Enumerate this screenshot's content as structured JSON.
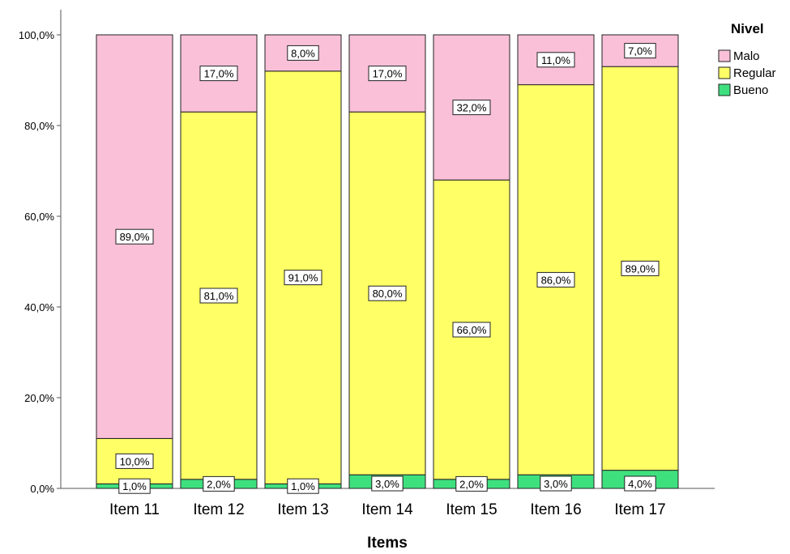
{
  "chart_data": {
    "type": "bar",
    "stacked": true,
    "categories": [
      "Item 11",
      "Item 12",
      "Item 13",
      "Item 14",
      "Item 15",
      "Item 16",
      "Item 17"
    ],
    "series": [
      {
        "name": "Bueno",
        "color": "#3ee07e",
        "values": [
          1.0,
          2.0,
          1.0,
          3.0,
          2.0,
          3.0,
          4.0
        ]
      },
      {
        "name": "Regular",
        "color": "#ffff66",
        "values": [
          10.0,
          81.0,
          91.0,
          80.0,
          66.0,
          86.0,
          89.0
        ]
      },
      {
        "name": "Malo",
        "color": "#f9c0d8",
        "values": [
          89.0,
          17.0,
          8.0,
          17.0,
          32.0,
          11.0,
          7.0
        ]
      }
    ],
    "data_labels": [
      [
        "1,0%",
        "2,0%",
        "1,0%",
        "3,0%",
        "2,0%",
        "3,0%",
        "4,0%"
      ],
      [
        "10,0%",
        "81,0%",
        "91,0%",
        "80,0%",
        "66,0%",
        "86,0%",
        "89,0%"
      ],
      [
        "89,0%",
        "17,0%",
        "8,0%",
        "17,0%",
        "32,0%",
        "11,0%",
        "7,0%"
      ]
    ],
    "yticks": [
      0,
      20,
      40,
      60,
      80,
      100
    ],
    "ytick_labels": [
      "0,0%",
      "20,0%",
      "40,0%",
      "60,0%",
      "80,0%",
      "100,0%"
    ],
    "ylim": [
      0,
      100
    ],
    "xlabel": "Items",
    "ylabel": "",
    "legend": {
      "title": "Nivel",
      "placement": "top-right",
      "order": [
        "Malo",
        "Regular",
        "Bueno"
      ]
    },
    "grid": false
  }
}
